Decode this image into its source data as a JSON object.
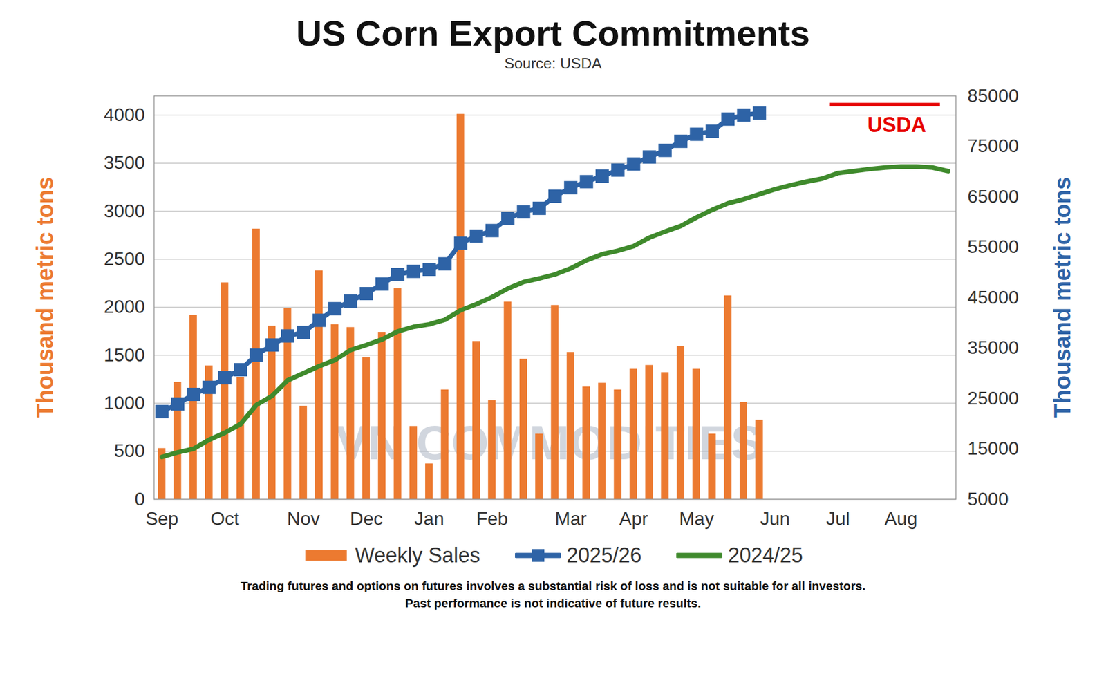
{
  "chart_data": {
    "type": "bar",
    "title": "US Corn Export Commitments",
    "subtitle": "Source: USDA",
    "y_label": "Thousand metric tons",
    "y2_label": "Thousand metric tons",
    "x": [
      0,
      1,
      2,
      3,
      4,
      5,
      6,
      7,
      8,
      9,
      10,
      11,
      12,
      13,
      14,
      15,
      16,
      17,
      18,
      19,
      20,
      21,
      22,
      23,
      24,
      25,
      26,
      27,
      28,
      29,
      30,
      31,
      32,
      33,
      34,
      35,
      36,
      37,
      38,
      39,
      40,
      41,
      42,
      43,
      44,
      45,
      46,
      47,
      48,
      49,
      50
    ],
    "xlim": [
      -0.5,
      50.5
    ],
    "xticks": [
      {
        "value": 0,
        "label": "Sep"
      },
      {
        "value": 4,
        "label": "Oct"
      },
      {
        "value": 9,
        "label": "Nov"
      },
      {
        "value": 13,
        "label": "Dec"
      },
      {
        "value": 17,
        "label": "Jan"
      },
      {
        "value": 21,
        "label": "Feb"
      },
      {
        "value": 26,
        "label": "Mar"
      },
      {
        "value": 30,
        "label": "Apr"
      },
      {
        "value": 34,
        "label": "May"
      },
      {
        "value": 39,
        "label": "Jun"
      },
      {
        "value": 43,
        "label": "Jul"
      },
      {
        "value": 47,
        "label": "Aug"
      }
    ],
    "ylim": [
      0,
      4200
    ],
    "yticks": [
      0,
      500,
      1000,
      1500,
      2000,
      2500,
      3000,
      3500,
      4000
    ],
    "y2lim": [
      5000,
      85000
    ],
    "y2ticks": [
      5000,
      15000,
      25000,
      35000,
      45000,
      55000,
      65000,
      75000,
      85000
    ],
    "grid": true,
    "legend": "bottom",
    "series": [
      {
        "name": "Weekly Sales",
        "type": "bar",
        "color": "#ec7a30",
        "values": [
          530,
          1220,
          1915,
          1390,
          2255,
          1270,
          2815,
          1805,
          1990,
          970,
          2380,
          1820,
          1790,
          1475,
          1740,
          2195,
          760,
          370,
          1140,
          4010,
          1645,
          1030,
          2055,
          1460,
          680,
          2020,
          1530,
          1170,
          1210,
          1140,
          1355,
          1395,
          1320,
          1590,
          1355,
          680,
          2120,
          1010,
          825,
          null,
          null,
          null,
          null,
          null,
          null,
          null,
          null,
          null,
          null,
          null,
          null
        ]
      },
      {
        "name": "2025/26",
        "type": "line",
        "axis": "y2",
        "color": "#2e63a6",
        "marker": "square",
        "values": [
          22400,
          23900,
          25800,
          27200,
          29100,
          30700,
          33600,
          35600,
          37400,
          38100,
          40500,
          42800,
          44300,
          45800,
          47700,
          49600,
          50200,
          50600,
          51700,
          55800,
          57200,
          58300,
          60700,
          62000,
          62700,
          65100,
          66800,
          68000,
          69100,
          70300,
          71500,
          72900,
          74200,
          76000,
          77400,
          78000,
          80400,
          81200,
          81600,
          null,
          null,
          null,
          null,
          null,
          null,
          null,
          null,
          null,
          null,
          null,
          null
        ]
      },
      {
        "name": "2024/25",
        "type": "line",
        "axis": "y2",
        "color": "#3f8a2c",
        "values": [
          13400,
          14300,
          15000,
          16800,
          18200,
          19900,
          23700,
          25500,
          28600,
          30000,
          31400,
          32600,
          34600,
          35600,
          36700,
          38300,
          39200,
          39700,
          40600,
          42500,
          43700,
          45100,
          46800,
          48100,
          48800,
          49600,
          50800,
          52400,
          53600,
          54300,
          55200,
          56900,
          58100,
          59200,
          60900,
          62400,
          63700,
          64500,
          65500,
          66500,
          67300,
          68000,
          68600,
          69700,
          70100,
          70500,
          70800,
          71000,
          71000,
          70800,
          70100
        ]
      }
    ],
    "annotations": [
      {
        "text": "USDA",
        "value": 83300,
        "x": [
          42.5,
          49.5
        ],
        "axis": "y2",
        "color": "#e60000"
      }
    ],
    "watermark": "VN COMMODITIES",
    "footnote": [
      "Trading futures and options on futures involves a substantial risk of loss and is not suitable for all investors.",
      "Past performance is not indicative of future results."
    ]
  }
}
